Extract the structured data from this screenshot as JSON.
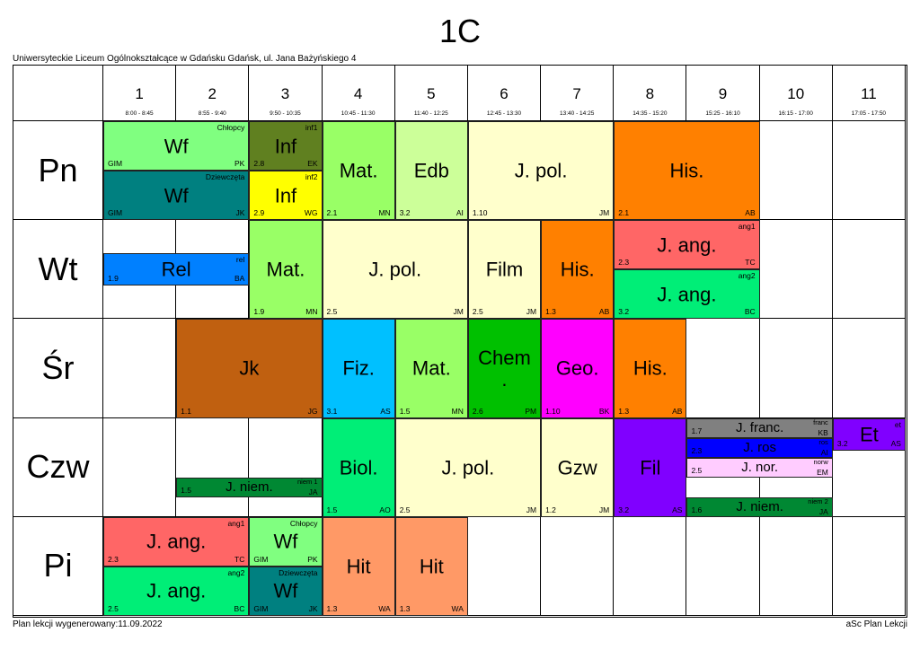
{
  "title": "1C",
  "school": "Uniwersyteckie Liceum Ogólnokształcące w Gdańsku Gdańsk, ul. Jana Bażyńskiego 4",
  "footer_left": "Plan lekcji wygenerowany:11.09.2022",
  "footer_right": "aSc Plan Lekcji",
  "periods": [
    {
      "num": "1",
      "time": "8:00 - 8:45"
    },
    {
      "num": "2",
      "time": "8:55 - 9:40"
    },
    {
      "num": "3",
      "time": "9:50 - 10:35"
    },
    {
      "num": "4",
      "time": "10:45 - 11:30"
    },
    {
      "num": "5",
      "time": "11:40 - 12:25"
    },
    {
      "num": "6",
      "time": "12:45 - 13:30"
    },
    {
      "num": "7",
      "time": "13:40 - 14:25"
    },
    {
      "num": "8",
      "time": "14:35 - 15:20"
    },
    {
      "num": "9",
      "time": "15:25 - 16:10"
    },
    {
      "num": "10",
      "time": "16:15 - 17:00"
    },
    {
      "num": "11",
      "time": "17:05 - 17:50"
    }
  ],
  "days": [
    "Pn",
    "Wt",
    "Śr",
    "Czw",
    "Pi"
  ],
  "lessons": [
    {
      "day": 0,
      "start": 0,
      "span": 2,
      "top": 0,
      "height": 0.5,
      "subject": "Wf",
      "room": "GIM",
      "teacher": "PK",
      "group": "Chłopcy",
      "color": "#80ff80",
      "size": 22
    },
    {
      "day": 0,
      "start": 0,
      "span": 2,
      "top": 0.5,
      "height": 0.5,
      "subject": "Wf",
      "room": "GIM",
      "teacher": "JK",
      "group": "Dziewczęta",
      "color": "#008080",
      "size": 22
    },
    {
      "day": 0,
      "start": 2,
      "span": 1,
      "top": 0,
      "height": 0.5,
      "subject": "Inf",
      "room": "2.8",
      "teacher": "EK",
      "group": "inf1",
      "color": "#608020",
      "size": 22
    },
    {
      "day": 0,
      "start": 2,
      "span": 1,
      "top": 0.5,
      "height": 0.5,
      "subject": "Inf",
      "room": "2.9",
      "teacher": "WG",
      "group": "inf2",
      "color": "#ffff00",
      "size": 22
    },
    {
      "day": 0,
      "start": 3,
      "span": 1,
      "top": 0,
      "height": 1,
      "subject": "Mat.",
      "room": "2.1",
      "teacher": "MN",
      "group": "",
      "color": "#99ff66",
      "size": 22
    },
    {
      "day": 0,
      "start": 4,
      "span": 1,
      "top": 0,
      "height": 1,
      "subject": "Edb",
      "room": "3.2",
      "teacher": "AI",
      "group": "",
      "color": "#ccff99",
      "size": 22
    },
    {
      "day": 0,
      "start": 5,
      "span": 2,
      "top": 0,
      "height": 1,
      "subject": "J. pol.",
      "room": "1.10",
      "teacher": "JM",
      "group": "",
      "color": "#ffffcc",
      "size": 22
    },
    {
      "day": 0,
      "start": 7,
      "span": 2,
      "top": 0,
      "height": 1,
      "subject": "His.",
      "room": "2.1",
      "teacher": "AB",
      "group": "",
      "color": "#ff8000",
      "size": 22
    },
    {
      "day": 1,
      "start": 0,
      "span": 2,
      "top": 0.33,
      "height": 0.33,
      "subject": "Rel",
      "room": "1.9",
      "teacher": "BA",
      "group": "rel",
      "color": "#0080ff",
      "size": 22
    },
    {
      "day": 1,
      "start": 2,
      "span": 1,
      "top": 0,
      "height": 1,
      "subject": "Mat.",
      "room": "1.9",
      "teacher": "MN",
      "group": "",
      "color": "#99ff66",
      "size": 22
    },
    {
      "day": 1,
      "start": 3,
      "span": 2,
      "top": 0,
      "height": 1,
      "subject": "J. pol.",
      "room": "2.5",
      "teacher": "JM",
      "group": "",
      "color": "#ffffcc",
      "size": 22
    },
    {
      "day": 1,
      "start": 5,
      "span": 1,
      "top": 0,
      "height": 1,
      "subject": "Film",
      "room": "2.5",
      "teacher": "JM",
      "group": "",
      "color": "#ffffcc",
      "size": 22
    },
    {
      "day": 1,
      "start": 6,
      "span": 1,
      "top": 0,
      "height": 1,
      "subject": "His.",
      "room": "1.3",
      "teacher": "AB",
      "group": "",
      "color": "#ff8000",
      "size": 22
    },
    {
      "day": 1,
      "start": 7,
      "span": 2,
      "top": 0,
      "height": 0.5,
      "subject": "J. ang.",
      "room": "2.3",
      "teacher": "TC",
      "group": "ang1",
      "color": "#ff6666",
      "size": 22
    },
    {
      "day": 1,
      "start": 7,
      "span": 2,
      "top": 0.5,
      "height": 0.5,
      "subject": "J. ang.",
      "room": "3.2",
      "teacher": "BC",
      "group": "ang2",
      "color": "#00ee77",
      "size": 22
    },
    {
      "day": 2,
      "start": 1,
      "span": 2,
      "top": 0,
      "height": 1,
      "subject": "Jk",
      "room": "1.1",
      "teacher": "JG",
      "group": "",
      "color": "#c06010",
      "size": 22
    },
    {
      "day": 2,
      "start": 3,
      "span": 1,
      "top": 0,
      "height": 1,
      "subject": "Fiz.",
      "room": "3.1",
      "teacher": "AS",
      "group": "",
      "color": "#00c0ff",
      "size": 22
    },
    {
      "day": 2,
      "start": 4,
      "span": 1,
      "top": 0,
      "height": 1,
      "subject": "Mat.",
      "room": "1.5",
      "teacher": "MN",
      "group": "",
      "color": "#99ff66",
      "size": 22
    },
    {
      "day": 2,
      "start": 5,
      "span": 1,
      "top": 0,
      "height": 1,
      "subject": "Chem .",
      "room": "2.6",
      "teacher": "PM",
      "group": "",
      "color": "#00c000",
      "size": 22
    },
    {
      "day": 2,
      "start": 6,
      "span": 1,
      "top": 0,
      "height": 1,
      "subject": "Geo.",
      "room": "1.10",
      "teacher": "BK",
      "group": "",
      "color": "#ff00ff",
      "size": 22
    },
    {
      "day": 2,
      "start": 7,
      "span": 1,
      "top": 0,
      "height": 1,
      "subject": "His.",
      "room": "1.3",
      "teacher": "AB",
      "group": "",
      "color": "#ff8000",
      "size": 22
    },
    {
      "day": 3,
      "start": 1,
      "span": 2,
      "top": 0.6,
      "height": 0.2,
      "subject": "J. niem.",
      "room": "1.5",
      "teacher": "JA",
      "group": "niem 1",
      "color": "#008833",
      "size": 16
    },
    {
      "day": 3,
      "start": 3,
      "span": 1,
      "top": 0,
      "height": 1,
      "subject": "Biol.",
      "room": "1.5",
      "teacher": "AO",
      "group": "",
      "color": "#00ee77",
      "size": 22
    },
    {
      "day": 3,
      "start": 4,
      "span": 2,
      "top": 0,
      "height": 1,
      "subject": "J. pol.",
      "room": "2.5",
      "teacher": "JM",
      "group": "",
      "color": "#ffffcc",
      "size": 22
    },
    {
      "day": 3,
      "start": 6,
      "span": 1,
      "top": 0,
      "height": 1,
      "subject": "Gzw",
      "room": "1.2",
      "teacher": "JM",
      "group": "",
      "color": "#ffffcc",
      "size": 22
    },
    {
      "day": 3,
      "start": 7,
      "span": 1,
      "top": 0,
      "height": 1,
      "subject": "Fil",
      "room": "3.2",
      "teacher": "AS",
      "group": "",
      "color": "#8000ff",
      "size": 22
    },
    {
      "day": 3,
      "start": 8,
      "span": 2,
      "top": 0,
      "height": 0.2,
      "subject": "J. franc.",
      "room": "1.7",
      "teacher": "KB",
      "group": "franc",
      "color": "#808080",
      "size": 16
    },
    {
      "day": 3,
      "start": 8,
      "span": 2,
      "top": 0.2,
      "height": 0.2,
      "subject": "J. ros",
      "room": "2.3",
      "teacher": "AI",
      "group": "ros",
      "color": "#0000ff",
      "size": 16
    },
    {
      "day": 3,
      "start": 8,
      "span": 2,
      "top": 0.4,
      "height": 0.2,
      "subject": "J. nor.",
      "room": "2.5",
      "teacher": "EM",
      "group": "norw",
      "color": "#ffccff",
      "size": 16
    },
    {
      "day": 3,
      "start": 8,
      "span": 2,
      "top": 0.8,
      "height": 0.2,
      "subject": "J. niem.",
      "room": "1.6",
      "teacher": "JA",
      "group": "niem 2",
      "color": "#008833",
      "size": 16
    },
    {
      "day": 3,
      "start": 10,
      "span": 1,
      "top": 0,
      "height": 0.33,
      "subject": "Et",
      "room": "3.2",
      "teacher": "AS",
      "group": "et",
      "color": "#8000ff",
      "size": 22
    },
    {
      "day": 4,
      "start": 0,
      "span": 2,
      "top": 0,
      "height": 0.5,
      "subject": "J. ang.",
      "room": "2.3",
      "teacher": "TC",
      "group": "ang1",
      "color": "#ff6666",
      "size": 22
    },
    {
      "day": 4,
      "start": 0,
      "span": 2,
      "top": 0.5,
      "height": 0.5,
      "subject": "J. ang.",
      "room": "2.5",
      "teacher": "BC",
      "group": "ang2",
      "color": "#00ee77",
      "size": 22
    },
    {
      "day": 4,
      "start": 2,
      "span": 1,
      "top": 0,
      "height": 0.5,
      "subject": "Wf",
      "room": "GIM",
      "teacher": "PK",
      "group": "Chłopcy",
      "color": "#80ff80",
      "size": 22
    },
    {
      "day": 4,
      "start": 2,
      "span": 1,
      "top": 0.5,
      "height": 0.5,
      "subject": "Wf",
      "room": "GIM",
      "teacher": "JK",
      "group": "Dziewczęta",
      "color": "#008080",
      "size": 22
    },
    {
      "day": 4,
      "start": 3,
      "span": 1,
      "top": 0,
      "height": 1,
      "subject": "Hit",
      "room": "1.3",
      "teacher": "WA",
      "group": "",
      "color": "#ff9966",
      "size": 22
    },
    {
      "day": 4,
      "start": 4,
      "span": 1,
      "top": 0,
      "height": 1,
      "subject": "Hit",
      "room": "1.3",
      "teacher": "WA",
      "group": "",
      "color": "#ff9966",
      "size": 22
    }
  ]
}
